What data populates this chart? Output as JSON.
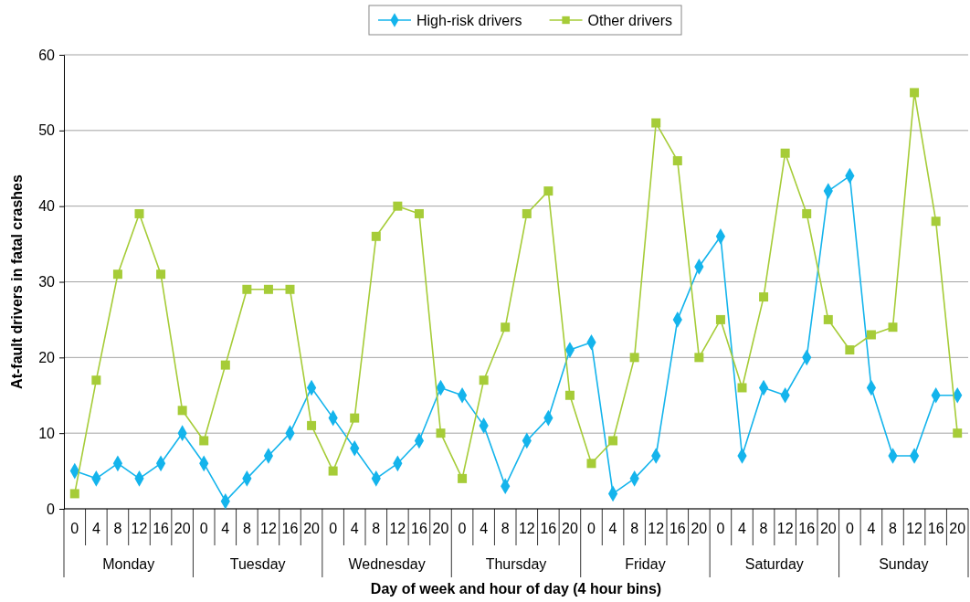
{
  "chart_data": {
    "type": "line",
    "xlabel": "Day of week and hour of day (4 hour bins)",
    "ylabel": "At-fault drivers in fatal crashes",
    "categories": [
      "0",
      "4",
      "8",
      "12",
      "16",
      "20",
      "0",
      "4",
      "8",
      "12",
      "16",
      "20",
      "0",
      "4",
      "8",
      "12",
      "16",
      "20",
      "0",
      "4",
      "8",
      "12",
      "16",
      "20",
      "0",
      "4",
      "8",
      "12",
      "16",
      "20",
      "0",
      "4",
      "8",
      "12",
      "16",
      "20",
      "0",
      "4",
      "8",
      "12",
      "16",
      "20"
    ],
    "annotations": [
      "Monday",
      "Tuesday",
      "Wednesday",
      "Thursday",
      "Friday",
      "Saturday",
      "Sunday"
    ],
    "series": [
      {
        "name": "High-risk drivers",
        "color": "#14b4ec",
        "marker": "diamond",
        "values": [
          5,
          4,
          6,
          4,
          6,
          10,
          6,
          1,
          4,
          7,
          10,
          16,
          12,
          8,
          4,
          6,
          9,
          16,
          15,
          11,
          3,
          9,
          12,
          21,
          22,
          2,
          4,
          7,
          25,
          32,
          36,
          7,
          16,
          15,
          20,
          42,
          44,
          16,
          7,
          7,
          15,
          15
        ]
      },
      {
        "name": "Other drivers",
        "color": "#a6cc38",
        "marker": "square",
        "values": [
          2,
          17,
          31,
          39,
          31,
          13,
          9,
          19,
          29,
          29,
          29,
          11,
          5,
          12,
          36,
          40,
          39,
          10,
          4,
          17,
          24,
          39,
          42,
          15,
          6,
          9,
          20,
          51,
          46,
          20,
          25,
          16,
          28,
          47,
          39,
          25,
          21,
          23,
          24,
          55,
          38,
          10
        ]
      }
    ],
    "ylim": [
      0,
      60
    ],
    "yticks": [
      0,
      10,
      20,
      30,
      40,
      50,
      60
    ],
    "grid": "y",
    "legend": "top",
    "line_style": "solid"
  }
}
